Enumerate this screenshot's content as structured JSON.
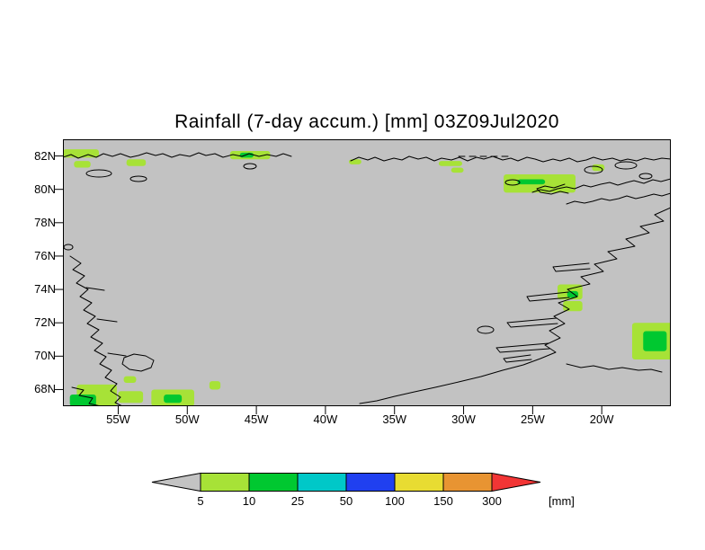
{
  "title": "Rainfall (7-day accum.) [mm] 03Z09Jul2020",
  "axes": {
    "lat_labels": [
      "82N",
      "80N",
      "78N",
      "76N",
      "74N",
      "72N",
      "70N",
      "68N"
    ],
    "lon_labels": [
      "55W",
      "50W",
      "45W",
      "40W",
      "35W",
      "30W",
      "25W",
      "20W"
    ]
  },
  "map": {
    "background_color": "#c2c2c2",
    "coastline_color": "#000000"
  },
  "colorbar": {
    "levels": [
      "5",
      "10",
      "25",
      "50",
      "100",
      "150",
      "300"
    ],
    "unit_label": "[mm]",
    "segments": [
      {
        "range": "<5",
        "color": "#c3c3c3"
      },
      {
        "range": "5-10",
        "color": "#a7e237"
      },
      {
        "range": "10-25",
        "color": "#00c830"
      },
      {
        "range": "25-50",
        "color": "#00c8c8"
      },
      {
        "range": "50-100",
        "color": "#2040f0"
      },
      {
        "range": "100-150",
        "color": "#e8dc32"
      },
      {
        "range": "150-300",
        "color": "#e89432"
      },
      {
        "range": ">300",
        "color": "#f23535"
      }
    ]
  },
  "chart_data": {
    "type": "heatmap",
    "title": "Rainfall (7-day accum.) [mm] 03Z09Jul2020",
    "variable": "Rainfall, 7-day accumulation",
    "unit": "mm",
    "valid_time_label": "03Z09Jul2020",
    "region": "Greenland",
    "x_axis": {
      "tick_labels": [
        "55W",
        "50W",
        "45W",
        "40W",
        "35W",
        "30W",
        "25W",
        "20W"
      ],
      "range_deg_west": [
        59,
        15
      ]
    },
    "y_axis": {
      "tick_labels": [
        "82N",
        "80N",
        "78N",
        "76N",
        "74N",
        "72N",
        "70N",
        "68N"
      ],
      "range_deg_north": [
        67,
        83
      ]
    },
    "color_scale_levels_mm": [
      5,
      10,
      25,
      50,
      100,
      150,
      300
    ],
    "background_field": "below 5 mm over most of domain (gray)",
    "rain_patches": [
      {
        "lon_w": [
          58.0,
          55.1
        ],
        "lat": [
          67.0,
          68.3
        ],
        "mm": "5-10"
      },
      {
        "lon_w": [
          58.5,
          56.6
        ],
        "lat": [
          67.0,
          67.7
        ],
        "mm": "10-25"
      },
      {
        "lon_w": [
          55.0,
          53.2
        ],
        "lat": [
          67.2,
          67.9
        ],
        "mm": "5-10"
      },
      {
        "lon_w": [
          52.6,
          49.5
        ],
        "lat": [
          67.0,
          68.0
        ],
        "mm": "5-10"
      },
      {
        "lon_w": [
          51.7,
          50.4
        ],
        "lat": [
          67.2,
          67.7
        ],
        "mm": "10-25"
      },
      {
        "lon_w": [
          54.6,
          53.7
        ],
        "lat": [
          68.4,
          68.8
        ],
        "mm": "5-10"
      },
      {
        "lon_w": [
          48.4,
          47.6
        ],
        "lat": [
          68.0,
          68.5
        ],
        "mm": "5-10"
      },
      {
        "lon_w": [
          59.0,
          56.4
        ],
        "lat": [
          81.9,
          82.4
        ],
        "mm": "5-10"
      },
      {
        "lon_w": [
          58.2,
          57.0
        ],
        "lat": [
          81.3,
          81.7
        ],
        "mm": "5-10"
      },
      {
        "lon_w": [
          54.4,
          53.0
        ],
        "lat": [
          81.4,
          81.8
        ],
        "mm": "5-10"
      },
      {
        "lon_w": [
          46.9,
          44.0
        ],
        "lat": [
          81.8,
          82.3
        ],
        "mm": "5-10"
      },
      {
        "lon_w": [
          46.2,
          45.2
        ],
        "lat": [
          81.9,
          82.2
        ],
        "mm": "10-25"
      },
      {
        "lon_w": [
          38.3,
          37.4
        ],
        "lat": [
          81.5,
          81.8
        ],
        "mm": "5-10"
      },
      {
        "lon_w": [
          31.8,
          30.1
        ],
        "lat": [
          81.4,
          81.7
        ],
        "mm": "5-10"
      },
      {
        "lon_w": [
          30.9,
          30.0
        ],
        "lat": [
          81.0,
          81.3
        ],
        "mm": "5-10"
      },
      {
        "lon_w": [
          27.1,
          21.9
        ],
        "lat": [
          79.8,
          80.9
        ],
        "mm": "5-10"
      },
      {
        "lon_w": [
          26.1,
          24.1
        ],
        "lat": [
          80.3,
          80.6
        ],
        "mm": "10-25"
      },
      {
        "lon_w": [
          20.7,
          19.8
        ],
        "lat": [
          81.1,
          81.5
        ],
        "mm": "5-10"
      },
      {
        "lon_w": [
          23.2,
          21.4
        ],
        "lat": [
          73.4,
          74.3
        ],
        "mm": "5-10"
      },
      {
        "lon_w": [
          22.8,
          21.4
        ],
        "lat": [
          72.7,
          73.3
        ],
        "mm": "5-10"
      },
      {
        "lon_w": [
          22.5,
          21.7
        ],
        "lat": [
          73.5,
          73.9
        ],
        "mm": "10-25"
      },
      {
        "lon_w": [
          17.8,
          14.9
        ],
        "lat": [
          69.8,
          72.0
        ],
        "mm": "5-10"
      },
      {
        "lon_w": [
          17.0,
          15.3
        ],
        "lat": [
          70.3,
          71.5
        ],
        "mm": "10-25"
      }
    ]
  }
}
